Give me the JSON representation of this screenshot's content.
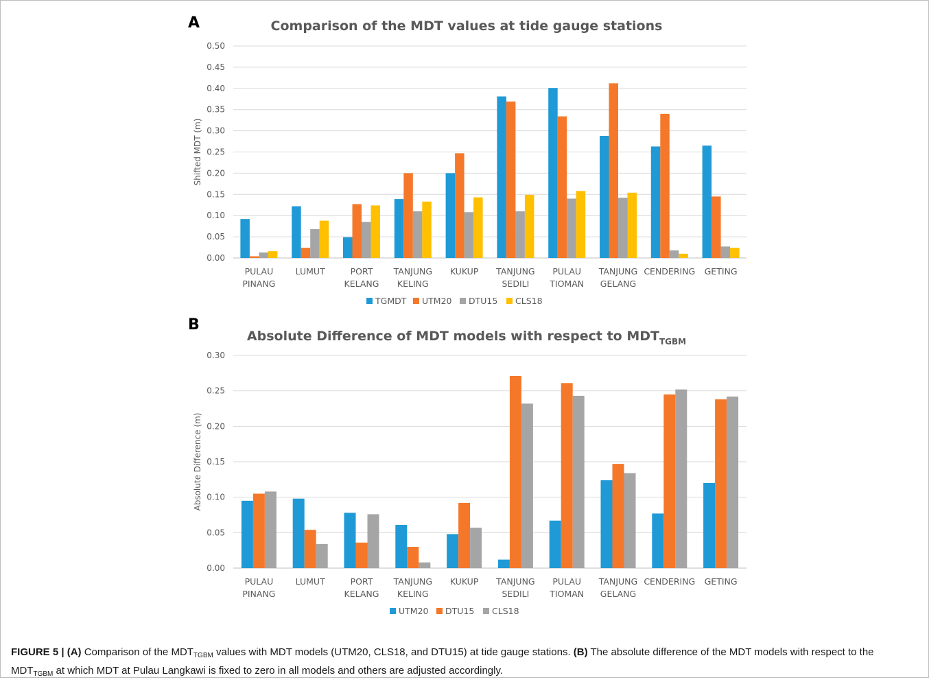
{
  "chart_data": [
    {
      "type": "bar",
      "panel_letter": "A",
      "title": "Comparison of the MDT values at tide gauge stations",
      "ylabel": "Shifted MDT (m)",
      "xlabel": "",
      "ylim": [
        0,
        0.5
      ],
      "yticks": [
        "0.00",
        "0.05",
        "0.10",
        "0.15",
        "0.20",
        "0.25",
        "0.30",
        "0.35",
        "0.40",
        "0.45",
        "0.50"
      ],
      "grid": true,
      "legend_position": "bottom",
      "categories": [
        [
          "PULAU",
          "PINANG"
        ],
        [
          "LUMUT"
        ],
        [
          "PORT",
          "KELANG"
        ],
        [
          "TANJUNG",
          "KELING"
        ],
        [
          "KUKUP"
        ],
        [
          "TANJUNG",
          "SEDILI"
        ],
        [
          "PULAU",
          "TIOMAN"
        ],
        [
          "TANJUNG",
          "GELANG"
        ],
        [
          "CENDERING"
        ],
        [
          "GETING"
        ]
      ],
      "series": [
        {
          "name": "TGMDT",
          "color": "#1f9ad6",
          "values": [
            0.092,
            0.122,
            0.049,
            0.139,
            0.2,
            0.381,
            0.401,
            0.288,
            0.263,
            0.265
          ]
        },
        {
          "name": "UTM20",
          "color": "#f5782a",
          "values": [
            0.004,
            0.024,
            0.127,
            0.2,
            0.247,
            0.369,
            0.334,
            0.412,
            0.34,
            0.145
          ]
        },
        {
          "name": "DTU15",
          "color": "#a5a5a5",
          "values": [
            0.013,
            0.068,
            0.085,
            0.11,
            0.108,
            0.11,
            0.14,
            0.142,
            0.018,
            0.027
          ]
        },
        {
          "name": "CLS18",
          "color": "#ffc000",
          "values": [
            0.016,
            0.088,
            0.124,
            0.133,
            0.143,
            0.149,
            0.158,
            0.154,
            0.01,
            0.024
          ]
        }
      ]
    },
    {
      "type": "bar",
      "panel_letter": "B",
      "title": "Absolute Difference of MDT models with respect to MDT",
      "title_subscript": "TGBM",
      "ylabel": "Absolute Difference (m)",
      "xlabel": "",
      "ylim": [
        0,
        0.3
      ],
      "yticks": [
        "0.00",
        "0.05",
        "0.10",
        "0.15",
        "0.20",
        "0.25",
        "0.30"
      ],
      "grid": true,
      "legend_position": "bottom",
      "categories": [
        [
          "PULAU",
          "PINANG"
        ],
        [
          "LUMUT"
        ],
        [
          "PORT",
          "KELANG"
        ],
        [
          "TANJUNG",
          "KELING"
        ],
        [
          "KUKUP"
        ],
        [
          "TANJUNG",
          "SEDILI"
        ],
        [
          "PULAU",
          "TIOMAN"
        ],
        [
          "TANJUNG",
          "GELANG"
        ],
        [
          "CENDERING"
        ],
        [
          "GETING"
        ]
      ],
      "series": [
        {
          "name": "UTM20",
          "color": "#1f9ad6",
          "values": [
            0.095,
            0.098,
            0.078,
            0.061,
            0.048,
            0.012,
            0.067,
            0.124,
            0.077,
            0.12
          ]
        },
        {
          "name": "DTU15",
          "color": "#f5782a",
          "values": [
            0.105,
            0.054,
            0.036,
            0.03,
            0.092,
            0.271,
            0.261,
            0.147,
            0.245,
            0.238
          ]
        },
        {
          "name": "CLS18",
          "color": "#a5a5a5",
          "values": [
            0.108,
            0.034,
            0.076,
            0.008,
            0.057,
            0.232,
            0.243,
            0.134,
            0.252,
            0.242
          ]
        }
      ]
    }
  ],
  "caption": {
    "figure_label": "FIGURE 5 |",
    "part_a_label": "(A)",
    "part_a_text_1": " Comparison of the MDT",
    "part_a_sub": "TGBM",
    "part_a_text_2": " values with MDT models (UTM20, CLS18, and DTU15) at tide gauge stations. ",
    "part_b_label": "(B)",
    "part_b_text_1": " The absolute difference of the MDT models with respect to the MDT",
    "part_b_sub": "TGBM",
    "part_b_text_2": " at which MDT at Pulau Langkawi is fixed to zero in all models and others are adjusted accordingly."
  }
}
